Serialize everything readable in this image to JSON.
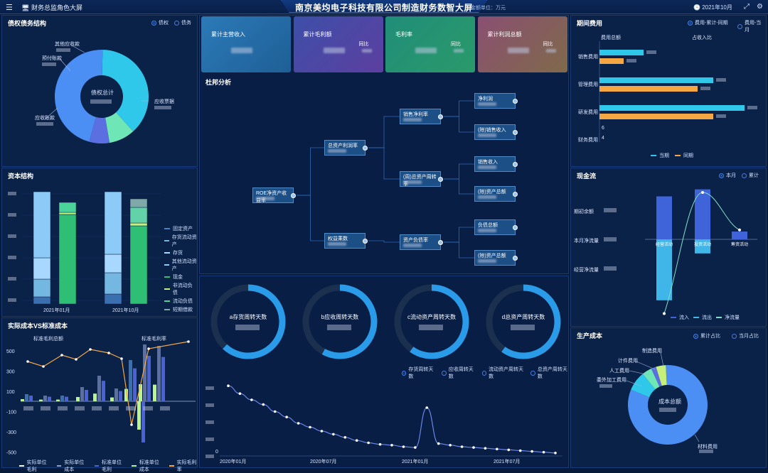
{
  "header": {
    "menu_icon": "menu-icon",
    "monitor_label": "财务总监角色大屏",
    "title": "南京美均电子科技有限公司制造财务数智大屏",
    "unit": "金额单位：万元",
    "date": "2021年10月"
  },
  "debt_structure": {
    "title": "债权债务结构",
    "options": [
      "债权",
      "债务"
    ],
    "selected": "债权",
    "center_label": "债权总计",
    "slices": [
      {
        "label": "应收账款",
        "value": 38,
        "color": "#2fc7ea"
      },
      {
        "label": "预付账款",
        "value": 9,
        "color": "#6ee6b5"
      },
      {
        "label": "其他应收款",
        "value": 7,
        "color": "#5b6fe0"
      },
      {
        "label": "应收票据",
        "value": 46,
        "color": "#4b8ff5"
      }
    ]
  },
  "capital_structure": {
    "title": "资本结构",
    "x_labels": [
      "2021年01月",
      "2021年10月"
    ],
    "legend": [
      "固定资产",
      "存货流动资产",
      "存货",
      "其他流动资产",
      "现金",
      "非流动负债",
      "流动负债",
      "短期借款"
    ]
  },
  "cost_vs_standard": {
    "title": "实际成本VS标准成本",
    "y_ticks": [
      "500",
      "300",
      "100",
      "-100",
      "-300",
      "-500"
    ],
    "annotations": [
      "标准毛利总额",
      "标准毛利率"
    ],
    "legend": [
      "实际单位毛利",
      "实际单位成本",
      "标准单位毛利",
      "标准单位成本",
      "实际毛利率"
    ]
  },
  "kpis": [
    {
      "title": "累计主营收入",
      "compare": "",
      "color_a": "#2b7ab8",
      "color_b": "#1f5f96"
    },
    {
      "title": "累计毛利额",
      "compare": "同比",
      "color_a": "#3d4fa8",
      "color_b": "#5d3fa0"
    },
    {
      "title": "毛利率",
      "compare": "同比",
      "color_a": "#208d78",
      "color_b": "#2a9a6a"
    },
    {
      "title": "累计利润总额",
      "compare": "同比",
      "color_a": "#8a4f72",
      "color_b": "#7f6a4a"
    }
  ],
  "dupont": {
    "title": "杜邦分析",
    "nodes": {
      "roe": "ROE净资产收益率",
      "roa": "总资产利润率",
      "multiplier": "权益乘数",
      "net_margin": "销售净利率",
      "asset_turnover": "(周)总资产周转率",
      "asset_liability": "资产负债率",
      "net_profit": "净利润",
      "sales_rev1": "(除)销售收入",
      "sales_rev2": "销售收入",
      "total_assets1": "(除)资产总额",
      "total_liab": "负债总额",
      "total_assets2": "(除)资产总额"
    }
  },
  "turnover": {
    "rings": [
      {
        "label": "a存货周转天数",
        "value": 0.62
      },
      {
        "label": "b应收周转天数",
        "value": 0.58
      },
      {
        "label": "c流动资产周转天数",
        "value": 0.6
      },
      {
        "label": "d总资产周转天数",
        "value": 0.6
      }
    ],
    "options": [
      "存货周转天数",
      "应收周转天数",
      "流动资产周转天数",
      "总资产周转天数"
    ],
    "selected": "存货周转天数",
    "x_labels": [
      "2020年01月",
      "2020年07月",
      "2021年01月",
      "2021年07月"
    ],
    "y_zero": "0",
    "series": [
      88,
      78,
      70,
      64,
      55,
      48,
      40,
      35,
      30,
      26,
      22,
      18,
      15,
      13,
      12,
      10,
      9,
      60,
      14,
      12,
      10,
      9,
      8,
      7,
      6,
      5,
      4,
      3,
      2
    ]
  },
  "period_expense": {
    "title": "期间费用",
    "options": [
      "费用-累计-同期",
      "费用-当月"
    ],
    "selected": "费用-累计-同期",
    "col_headers": [
      "费用总额",
      "占收入比"
    ],
    "categories": [
      "销售费用",
      "管理费用",
      "研发费用",
      "财务费用"
    ],
    "current": [
      62,
      160,
      204,
      0
    ],
    "previous": [
      34,
      138,
      160,
      0
    ],
    "financial_values": [
      "6",
      "4"
    ],
    "legend": [
      "当期",
      "同期"
    ]
  },
  "cash_flow": {
    "title": "现金流",
    "options": [
      "本月",
      "累计"
    ],
    "selected": "本月",
    "row_labels": [
      "期初余额",
      "本月净流量",
      "经营净流量"
    ],
    "bars": [
      "经营活动",
      "投资活动",
      "筹资活动"
    ],
    "inflow": [
      55,
      64,
      10
    ],
    "outflow": [
      -78,
      -18,
      0
    ],
    "net_line": [
      -95,
      60,
      12
    ],
    "legend": [
      "流入",
      "流出",
      "净流量"
    ]
  },
  "production_cost": {
    "title": "生产成本",
    "options": [
      "累计占比",
      "当月占比"
    ],
    "selected": "累计占比",
    "center_label": "成本总额",
    "slices": [
      {
        "label": "材料费用",
        "value": 82,
        "color": "#4b8ff5"
      },
      {
        "label": "委外加工费用",
        "value": 8,
        "color": "#2fc7ea"
      },
      {
        "label": "人工费用",
        "value": 4,
        "color": "#6ee6b5"
      },
      {
        "label": "计件费用",
        "value": 2,
        "color": "#5b6fe0"
      },
      {
        "label": "制造费用",
        "value": 4,
        "color": "#c5f07a"
      }
    ]
  }
}
